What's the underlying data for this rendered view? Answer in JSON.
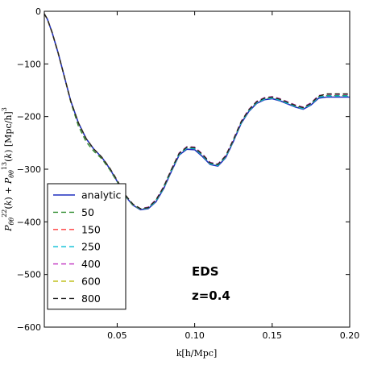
{
  "chart_data": {
    "type": "line",
    "xlabel": "k[h/Mpc]",
    "ylabel": "P_θθ^22(k) + P_θθ^13(k) [Mpc/h]^3",
    "xlim": [
      0.003,
      0.2
    ],
    "ylim": [
      -600,
      0
    ],
    "xticks": [
      0.05,
      0.1,
      0.15,
      0.2
    ],
    "xtick_labels": [
      "0.05",
      "0.10",
      "0.15",
      "0.20"
    ],
    "yticks": [
      0,
      -100,
      -200,
      -300,
      -400,
      -500,
      -600
    ],
    "ytick_labels": [
      "0",
      "−100",
      "−200",
      "−300",
      "−400",
      "−500",
      "−600"
    ],
    "grid": false,
    "legend_position": "lower-left",
    "annotations": [
      "EDS",
      "z=0.4"
    ],
    "x": [
      0.003,
      0.005,
      0.008,
      0.012,
      0.016,
      0.02,
      0.025,
      0.03,
      0.035,
      0.04,
      0.045,
      0.05,
      0.055,
      0.06,
      0.065,
      0.07,
      0.075,
      0.08,
      0.085,
      0.09,
      0.095,
      0.1,
      0.105,
      0.11,
      0.115,
      0.12,
      0.125,
      0.13,
      0.135,
      0.14,
      0.145,
      0.15,
      0.155,
      0.16,
      0.165,
      0.17,
      0.175,
      0.18,
      0.185,
      0.19,
      0.195,
      0.2
    ],
    "series": [
      {
        "name": "analytic",
        "color": "#1f2fbf",
        "dashed": false,
        "values": [
          -5,
          -15,
          -40,
          -80,
          -125,
          -170,
          -212,
          -242,
          -262,
          -277,
          -298,
          -323,
          -350,
          -368,
          -377,
          -375,
          -362,
          -337,
          -304,
          -273,
          -262,
          -263,
          -276,
          -291,
          -294,
          -278,
          -247,
          -213,
          -190,
          -175,
          -168,
          -166,
          -170,
          -176,
          -182,
          -186,
          -178,
          -165,
          -163,
          -163,
          -163,
          -163
        ]
      },
      {
        "name": "50",
        "color": "#2e8b2e",
        "dashed": true,
        "values": [
          -5,
          -15,
          -40,
          -80,
          -125,
          -172,
          -218,
          -248,
          -266,
          -280,
          -300,
          -324,
          -350,
          -368,
          -376,
          -373,
          -359,
          -333,
          -300,
          -270,
          -259,
          -260,
          -273,
          -289,
          -292,
          -276,
          -245,
          -211,
          -188,
          -173,
          -166,
          -164,
          -168,
          -174,
          -180,
          -184,
          -176,
          -162,
          -160,
          -160,
          -160,
          -160
        ]
      },
      {
        "name": "150",
        "color": "#ff3b3b",
        "dashed": true,
        "values": [
          -5,
          -15,
          -40,
          -80,
          -125,
          -170,
          -212,
          -242,
          -262,
          -277,
          -298,
          -322,
          -349,
          -367,
          -376,
          -374,
          -361,
          -336,
          -303,
          -272,
          -260,
          -261,
          -274,
          -290,
          -293,
          -277,
          -246,
          -212,
          -189,
          -174,
          -167,
          -165,
          -169,
          -175,
          -181,
          -185,
          -177,
          -163,
          -161,
          -161,
          -161,
          -161
        ]
      },
      {
        "name": "250",
        "color": "#00bcd4",
        "dashed": true,
        "values": [
          -5,
          -15,
          -40,
          -80,
          -125,
          -170,
          -212,
          -242,
          -262,
          -277,
          -298,
          -322,
          -349,
          -367,
          -376,
          -374,
          -361,
          -336,
          -303,
          -272,
          -260,
          -261,
          -274,
          -290,
          -293,
          -277,
          -246,
          -212,
          -189,
          -174,
          -167,
          -165,
          -169,
          -175,
          -181,
          -185,
          -177,
          -163,
          -161,
          -161,
          -161,
          -161
        ]
      },
      {
        "name": "400",
        "color": "#c030c0",
        "dashed": true,
        "values": [
          -5,
          -15,
          -40,
          -80,
          -125,
          -170,
          -212,
          -242,
          -262,
          -277,
          -297,
          -321,
          -348,
          -366,
          -375,
          -372,
          -358,
          -333,
          -300,
          -269,
          -257,
          -258,
          -271,
          -287,
          -290,
          -274,
          -243,
          -209,
          -186,
          -171,
          -164,
          -162,
          -166,
          -172,
          -178,
          -182,
          -174,
          -160,
          -158,
          -158,
          -158,
          -158
        ]
      },
      {
        "name": "600",
        "color": "#c0c020",
        "dashed": true,
        "values": [
          -5,
          -15,
          -40,
          -80,
          -125,
          -170,
          -212,
          -242,
          -262,
          -277,
          -297,
          -321,
          -348,
          -366,
          -375,
          -373,
          -359,
          -334,
          -301,
          -270,
          -258,
          -259,
          -272,
          -288,
          -291,
          -275,
          -244,
          -210,
          -187,
          -172,
          -165,
          -163,
          -167,
          -173,
          -179,
          -183,
          -175,
          -161,
          -157,
          -157,
          -157,
          -157
        ]
      },
      {
        "name": "800",
        "color": "#222222",
        "dashed": true,
        "values": [
          -5,
          -15,
          -40,
          -80,
          -125,
          -170,
          -212,
          -242,
          -262,
          -277,
          -297,
          -321,
          -348,
          -366,
          -375,
          -373,
          -359,
          -334,
          -301,
          -270,
          -258,
          -259,
          -272,
          -288,
          -291,
          -275,
          -244,
          -210,
          -187,
          -172,
          -165,
          -163,
          -167,
          -173,
          -179,
          -183,
          -175,
          -161,
          -157,
          -157,
          -157,
          -157
        ]
      }
    ]
  }
}
